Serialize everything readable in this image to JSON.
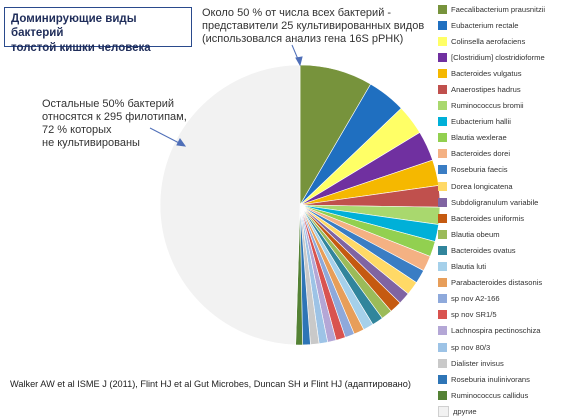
{
  "title": {
    "lines": [
      "Доминирующие виды бактерий",
      "толстой кишки человека"
    ]
  },
  "annotation_top": {
    "lines": [
      "Около 50 % от числа всех бактерий -",
      "представители 25 культивированных видов",
      "(использовался анализ гена 16S рРНК)"
    ]
  },
  "annotation_left": {
    "lines": [
      "Остальные 50% бактерий",
      "относятся к 295 филотипам,",
      "72 % которых",
      "не культивированы"
    ]
  },
  "source": "Walker AW et al ISME J (2011), Flint HJ et al  Gut Microbes, Duncan SH и Flint HJ (адаптировано)",
  "chart_data": {
    "type": "pie",
    "title": "Доминирующие виды бактерий толстой кишки человека",
    "legend_position": "right",
    "slices": [
      {
        "label": "Faecalibacterium prausnitzii",
        "value": 8.5,
        "color": "#77933c"
      },
      {
        "label": "Eubacterium rectale",
        "value": 4.5,
        "color": "#1f6fc0"
      },
      {
        "label": "Colinsella aerofaciens",
        "value": 3.5,
        "color": "#ffff66"
      },
      {
        "label": "[Clostridium] clostridioforme",
        "value": 3.5,
        "color": "#7030a0"
      },
      {
        "label": "Bacteroides vulgatus",
        "value": 3,
        "color": "#f5b800"
      },
      {
        "label": "Anaerostipes hadrus",
        "value": 2.5,
        "color": "#c0504d"
      },
      {
        "label": "Ruminococcus bromii",
        "value": 2,
        "color": "#a9d86e"
      },
      {
        "label": "Eubacterium hallii",
        "value": 2,
        "color": "#00b0d8"
      },
      {
        "label": "Blautia wexlerae",
        "value": 1.8,
        "color": "#92d050"
      },
      {
        "label": "Bacteroides dorei",
        "value": 1.8,
        "color": "#f4b183"
      },
      {
        "label": "Roseburia faecis",
        "value": 1.6,
        "color": "#3a7dc4"
      },
      {
        "label": "Dorea longicatena",
        "value": 1.6,
        "color": "#ffd966"
      },
      {
        "label": "Subdoligranulum variabile",
        "value": 1.4,
        "color": "#8064a2"
      },
      {
        "label": "Bacteroides uniformis",
        "value": 1.4,
        "color": "#c55a11"
      },
      {
        "label": "Blautia obeum",
        "value": 1.3,
        "color": "#9bbb59"
      },
      {
        "label": "Bacteroides ovatus",
        "value": 1.3,
        "color": "#31859c"
      },
      {
        "label": "Blautia luti",
        "value": 1.2,
        "color": "#a5d0ea"
      },
      {
        "label": "Parabacteroides distasonis",
        "value": 1.2,
        "color": "#e79e5a"
      },
      {
        "label": "sp nov A2-166",
        "value": 1.1,
        "color": "#8ea9db"
      },
      {
        "label": "sp nov SR1/5",
        "value": 1.1,
        "color": "#d9534f"
      },
      {
        "label": "Lachnospira pectinoschiza",
        "value": 1,
        "color": "#b4a7d6"
      },
      {
        "label": "sp nov 80/3",
        "value": 1,
        "color": "#9dc3e6"
      },
      {
        "label": "Dialister invisus",
        "value": 1,
        "color": "#c9c9c9"
      },
      {
        "label": "Roseburia inulinivorans",
        "value": 0.9,
        "color": "#2e75b6"
      },
      {
        "label": "Ruminococcus callidus",
        "value": 0.8,
        "color": "#548235"
      },
      {
        "label": "другие",
        "value": 50,
        "color": "#f2f2f2"
      }
    ]
  }
}
